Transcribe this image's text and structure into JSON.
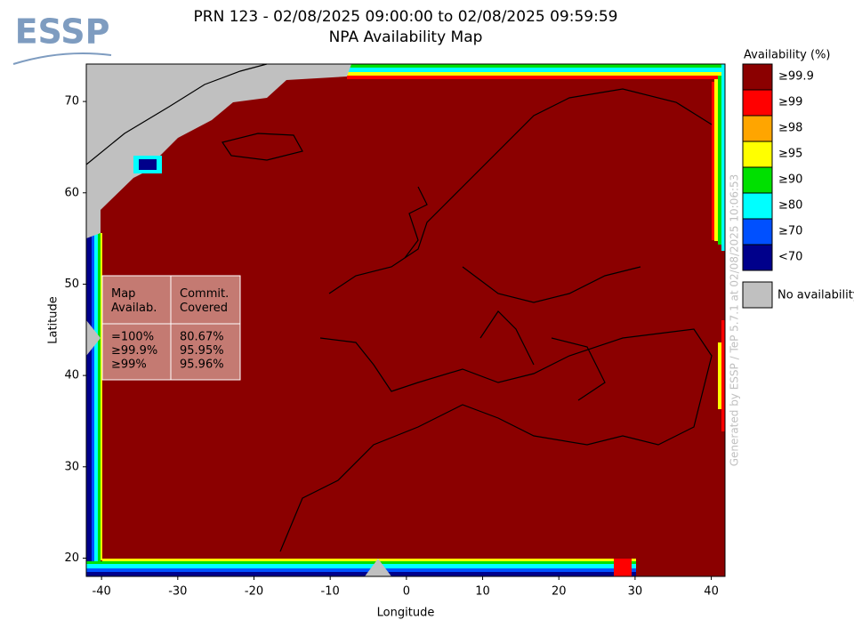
{
  "header": {
    "logo": "ESSP",
    "title_line1": "PRN 123 - 02/08/2025 09:00:00 to 02/08/2025 09:59:59",
    "title_line2": "NPA Availability Map"
  },
  "map": {
    "x_label": "Longitude",
    "y_label": "Latitude",
    "xlim": [
      -42,
      41.8
    ],
    "ylim": [
      18,
      74.1
    ],
    "xticks": [
      -40,
      -30,
      -20,
      -10,
      0,
      10,
      20,
      30,
      40
    ],
    "yticks": [
      20,
      30,
      40,
      50,
      60,
      70
    ]
  },
  "legend": {
    "title": "Availability (%)",
    "items": [
      {
        "label": "≥99.9",
        "color": "#8b0000"
      },
      {
        "label": "≥99",
        "color": "#ff0000"
      },
      {
        "label": "≥98",
        "color": "#ffa500"
      },
      {
        "label": "≥95",
        "color": "#ffff00"
      },
      {
        "label": "≥90",
        "color": "#00e000"
      },
      {
        "label": "≥80",
        "color": "#00ffff"
      },
      {
        "label": "≥70",
        "color": "#0050ff"
      },
      {
        "label": "<70",
        "color": "#00008b"
      }
    ],
    "no_availability": {
      "label": "No availability",
      "color": "#c0c0c0"
    }
  },
  "stats_table": {
    "headers": [
      "Map\nAvailab.",
      "Commit.\nCovered"
    ],
    "rows": [
      [
        "=100%",
        "80.67%"
      ],
      [
        "≥99.9%",
        "95.95%"
      ],
      [
        "≥99%",
        "95.96%"
      ]
    ]
  },
  "watermark": "Generated by ESSP / TeP 5.7.1 at 02/08/2025 10:06:53"
}
